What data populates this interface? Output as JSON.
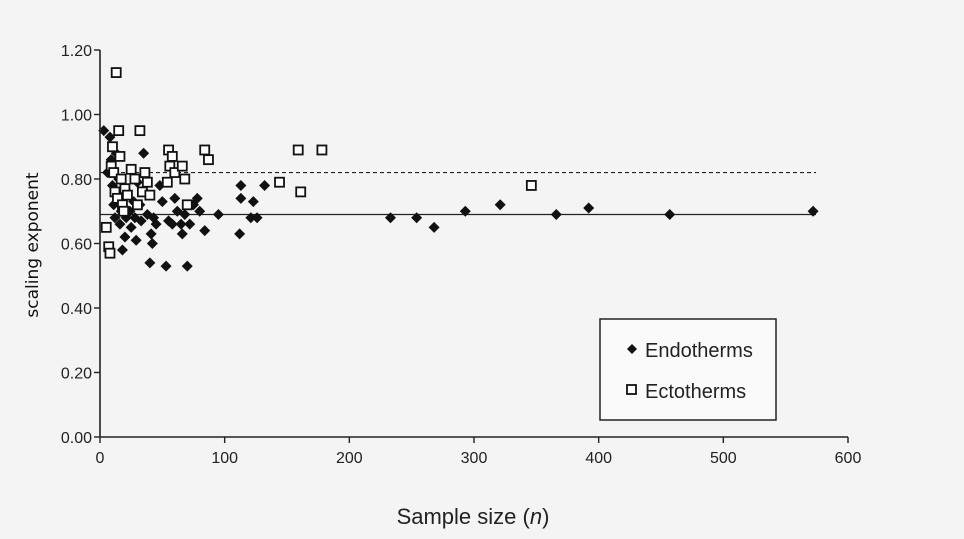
{
  "chart_data": {
    "type": "scatter",
    "title": "",
    "xlabel_main": "Sample size (",
    "xlabel_italic": "n",
    "xlabel_end": ")",
    "ylabel": "scaling exponent",
    "xlim": [
      0,
      600
    ],
    "ylim": [
      0,
      1.2
    ],
    "xticks": [
      0,
      100,
      200,
      300,
      400,
      500,
      600
    ],
    "yticks": [
      0,
      0.2,
      0.4,
      0.6,
      0.8,
      1.0,
      1.2
    ],
    "ytick_labels": [
      "0.00",
      "0.20",
      "0.40",
      "0.60",
      "0.80",
      "1.00",
      "1.20"
    ],
    "reference_lines": [
      {
        "y": 0.69,
        "style": "solid"
      },
      {
        "y": 0.82,
        "style": "dashed"
      }
    ],
    "legend_position": "bottom-right",
    "grid": false,
    "series": [
      {
        "name": "Endotherms",
        "marker": "diamond-filled",
        "color": "#111111",
        "points": [
          [
            3,
            0.95
          ],
          [
            6,
            0.82
          ],
          [
            8,
            0.93
          ],
          [
            9,
            0.86
          ],
          [
            10,
            0.78
          ],
          [
            11,
            0.72
          ],
          [
            12,
            0.68
          ],
          [
            13,
            0.88
          ],
          [
            14,
            0.75
          ],
          [
            15,
            0.8
          ],
          [
            16,
            0.66
          ],
          [
            17,
            0.7
          ],
          [
            18,
            0.58
          ],
          [
            19,
            0.74
          ],
          [
            20,
            0.62
          ],
          [
            21,
            0.68
          ],
          [
            22,
            0.76
          ],
          [
            24,
            0.7
          ],
          [
            25,
            0.65
          ],
          [
            27,
            0.73
          ],
          [
            28,
            0.68
          ],
          [
            29,
            0.61
          ],
          [
            30,
            0.79
          ],
          [
            32,
            0.72
          ],
          [
            33,
            0.67
          ],
          [
            35,
            0.88
          ],
          [
            36,
            0.76
          ],
          [
            38,
            0.69
          ],
          [
            40,
            0.54
          ],
          [
            41,
            0.63
          ],
          [
            42,
            0.6
          ],
          [
            43,
            0.68
          ],
          [
            45,
            0.66
          ],
          [
            48,
            0.78
          ],
          [
            50,
            0.73
          ],
          [
            53,
            0.53
          ],
          [
            55,
            0.67
          ],
          [
            58,
            0.66
          ],
          [
            60,
            0.74
          ],
          [
            62,
            0.7
          ],
          [
            65,
            0.66
          ],
          [
            66,
            0.63
          ],
          [
            68,
            0.69
          ],
          [
            70,
            0.53
          ],
          [
            72,
            0.66
          ],
          [
            75,
            0.72
          ],
          [
            78,
            0.74
          ],
          [
            80,
            0.7
          ],
          [
            84,
            0.64
          ],
          [
            95,
            0.69
          ],
          [
            112,
            0.63
          ],
          [
            113,
            0.74
          ],
          [
            113,
            0.78
          ],
          [
            121,
            0.68
          ],
          [
            123,
            0.73
          ],
          [
            126,
            0.68
          ],
          [
            132,
            0.78
          ],
          [
            233,
            0.68
          ],
          [
            254,
            0.68
          ],
          [
            268,
            0.65
          ],
          [
            293,
            0.7
          ],
          [
            321,
            0.72
          ],
          [
            366,
            0.69
          ],
          [
            392,
            0.71
          ],
          [
            457,
            0.69
          ],
          [
            572,
            0.7
          ]
        ]
      },
      {
        "name": "Ectotherms",
        "marker": "square-open",
        "color": "#111111",
        "points": [
          [
            5,
            0.65
          ],
          [
            7,
            0.59
          ],
          [
            8,
            0.57
          ],
          [
            9,
            0.84
          ],
          [
            10,
            0.9
          ],
          [
            11,
            0.82
          ],
          [
            12,
            0.76
          ],
          [
            13,
            1.13
          ],
          [
            14,
            0.74
          ],
          [
            15,
            0.95
          ],
          [
            16,
            0.87
          ],
          [
            17,
            0.8
          ],
          [
            18,
            0.72
          ],
          [
            19,
            0.7
          ],
          [
            20,
            0.77
          ],
          [
            22,
            0.75
          ],
          [
            25,
            0.83
          ],
          [
            28,
            0.8
          ],
          [
            30,
            0.72
          ],
          [
            32,
            0.95
          ],
          [
            34,
            0.76
          ],
          [
            36,
            0.82
          ],
          [
            38,
            0.79
          ],
          [
            40,
            0.75
          ],
          [
            54,
            0.79
          ],
          [
            55,
            0.89
          ],
          [
            56,
            0.84
          ],
          [
            58,
            0.87
          ],
          [
            60,
            0.82
          ],
          [
            66,
            0.84
          ],
          [
            68,
            0.8
          ],
          [
            70,
            0.72
          ],
          [
            84,
            0.89
          ],
          [
            87,
            0.86
          ],
          [
            144,
            0.79
          ],
          [
            159,
            0.89
          ],
          [
            161,
            0.76
          ],
          [
            178,
            0.89
          ],
          [
            346,
            0.78
          ]
        ]
      }
    ]
  }
}
